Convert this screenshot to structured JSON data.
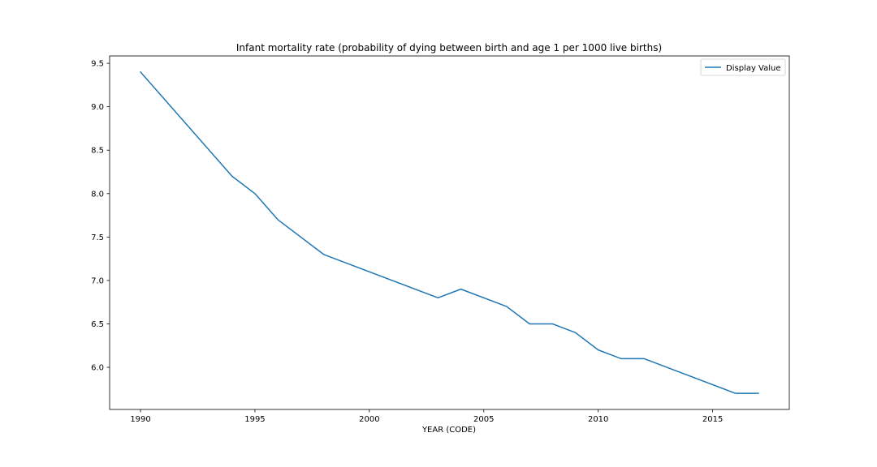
{
  "chart_data": {
    "type": "line",
    "title": "Infant mortality rate (probability of dying between birth and age 1 per 1000 live births)",
    "xlabel": "YEAR (CODE)",
    "ylabel": "",
    "x": [
      1990,
      1994,
      1995,
      1996,
      1998,
      2003,
      2004,
      2006,
      2007,
      2008,
      2009,
      2010,
      2011,
      2012,
      2016,
      2017
    ],
    "series": [
      {
        "name": "Display Value",
        "color": "#1f77b4",
        "values": [
          9.4,
          8.2,
          8.0,
          7.7,
          7.3,
          6.8,
          6.9,
          6.7,
          6.5,
          6.5,
          6.4,
          6.2,
          6.1,
          6.1,
          5.7,
          5.7
        ]
      }
    ],
    "xlim": [
      1988.65,
      2018.35
    ],
    "ylim": [
      5.515,
      9.585
    ],
    "xticks": [
      1990,
      1995,
      2000,
      2005,
      2010,
      2015
    ],
    "xtick_labels": [
      "1990",
      "1995",
      "2000",
      "2005",
      "2010",
      "2015"
    ],
    "yticks": [
      6.0,
      6.5,
      7.0,
      7.5,
      8.0,
      8.5,
      9.0,
      9.5
    ],
    "ytick_labels": [
      "6.0",
      "6.5",
      "7.0",
      "7.5",
      "8.0",
      "8.5",
      "9.0",
      "9.5"
    ],
    "grid": false,
    "legend_position": "top-right"
  }
}
